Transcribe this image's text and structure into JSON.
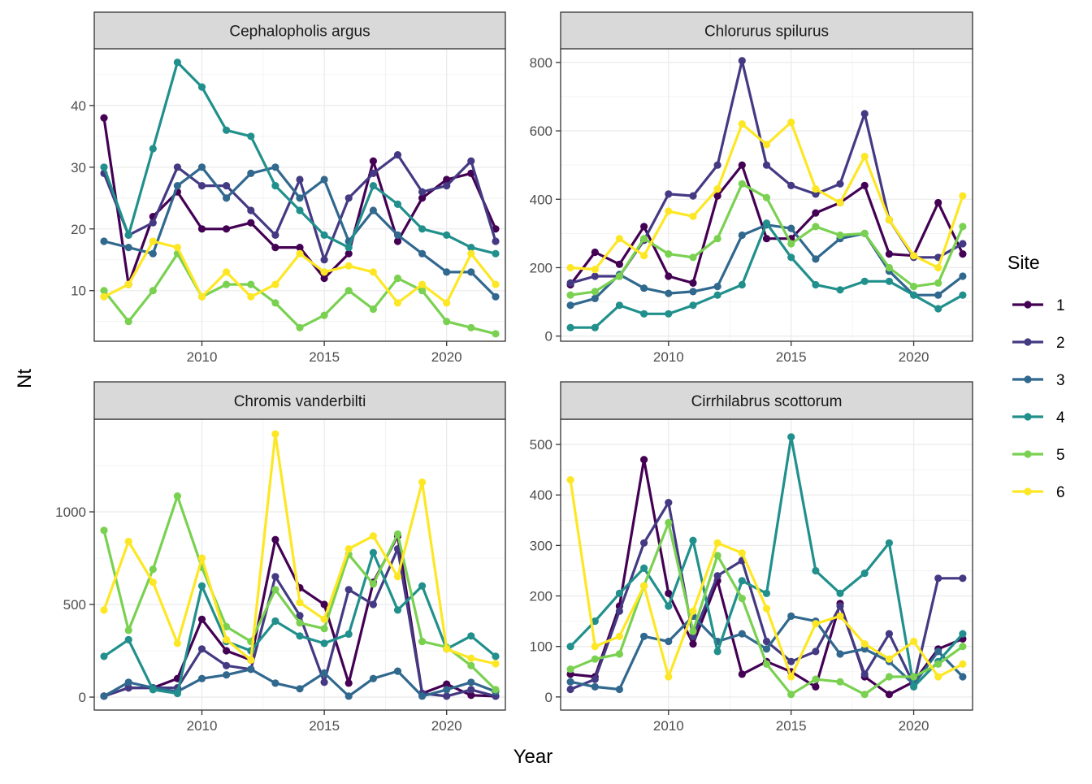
{
  "chart_data": {
    "type": "line",
    "xlabel": "Year",
    "ylabel": "Nt",
    "legend": {
      "title": "Site",
      "position": "right",
      "entries": [
        "1",
        "2",
        "3",
        "4",
        "5",
        "6"
      ]
    },
    "colors": [
      "#440154",
      "#443A83",
      "#31688E",
      "#21908C",
      "#7AD151",
      "#FDE725"
    ],
    "grid": true,
    "x": [
      2006,
      2007,
      2008,
      2009,
      2010,
      2011,
      2012,
      2013,
      2014,
      2015,
      2016,
      2017,
      2018,
      2019,
      2020,
      2021,
      2022
    ],
    "x_ticks": [
      2010,
      2015,
      2020
    ],
    "x_tick_labels": [
      "2010",
      "2015",
      "2020"
    ],
    "x_range": [
      2005.6,
      2022.4
    ],
    "panels": [
      {
        "title": "Cephalopholis argus",
        "ylim": [
          1.8,
          49.2
        ],
        "y_ticks": [
          10,
          20,
          30,
          40
        ],
        "y_tick_labels": [
          "10",
          "20",
          "30",
          "40"
        ],
        "series": [
          {
            "name": "1",
            "values": [
              38,
              11,
              22,
              26,
              20,
              20,
              21,
              17,
              17,
              12,
              16,
              31,
              18,
              25,
              28,
              29,
              20
            ]
          },
          {
            "name": "2",
            "values": [
              29,
              19,
              21,
              30,
              27,
              27,
              23,
              19,
              28,
              15,
              25,
              29,
              32,
              26,
              27,
              31,
              18
            ]
          },
          {
            "name": "3",
            "values": [
              18,
              17,
              16,
              27,
              30,
              25,
              29,
              30,
              25,
              28,
              18,
              23,
              19,
              16,
              13,
              13,
              9
            ]
          },
          {
            "name": "4",
            "values": [
              30,
              19,
              33,
              47,
              43,
              36,
              35,
              27,
              23,
              19,
              17,
              27,
              24,
              20,
              19,
              17,
              16
            ]
          },
          {
            "name": "5",
            "values": [
              10,
              5,
              10,
              16,
              9,
              11,
              11,
              8,
              4,
              6,
              10,
              7,
              12,
              10,
              5,
              4,
              3
            ]
          },
          {
            "name": "6",
            "values": [
              9,
              11,
              18,
              17,
              9,
              13,
              9,
              11,
              16,
              13,
              14,
              13,
              8,
              11,
              8,
              16,
              11
            ]
          }
        ]
      },
      {
        "title": "Chlorurus spilurus",
        "ylim": [
          -15,
          840
        ],
        "y_ticks": [
          0,
          200,
          400,
          600,
          800
        ],
        "y_tick_labels": [
          "0",
          "200",
          "400",
          "600",
          "800"
        ],
        "series": [
          {
            "name": "1",
            "values": [
              150,
              245,
              210,
              320,
              175,
              155,
              410,
              500,
              285,
              285,
              360,
              390,
              440,
              240,
              235,
              390,
              240
            ]
          },
          {
            "name": "2",
            "values": [
              155,
              175,
              175,
              280,
              415,
              410,
              500,
              805,
              500,
              440,
              415,
              445,
              650,
              340,
              230,
              230,
              270
            ]
          },
          {
            "name": "3",
            "values": [
              90,
              110,
              180,
              140,
              125,
              130,
              145,
              295,
              325,
              315,
              225,
              285,
              300,
              190,
              120,
              120,
              175
            ]
          },
          {
            "name": "4",
            "values": [
              25,
              25,
              90,
              65,
              65,
              90,
              120,
              150,
              330,
              230,
              150,
              135,
              160,
              160,
              120,
              80,
              120
            ]
          },
          {
            "name": "5",
            "values": [
              120,
              130,
              175,
              285,
              240,
              230,
              285,
              445,
              405,
              270,
              320,
              295,
              300,
              200,
              145,
              155,
              320
            ]
          },
          {
            "name": "6",
            "values": [
              200,
              195,
              285,
              235,
              365,
              350,
              430,
              620,
              560,
              625,
              430,
              390,
              525,
              340,
              235,
              200,
              410
            ]
          }
        ]
      },
      {
        "title": "Chromis vanderbilti",
        "ylim": [
          -70,
          1500
        ],
        "y_ticks": [
          0,
          500,
          1000
        ],
        "y_tick_labels": [
          "0",
          "500",
          "1000"
        ],
        "series": [
          {
            "name": "1",
            "values": [
              5,
              50,
              50,
              100,
              420,
              250,
              200,
              850,
              590,
              500,
              75,
              620,
              870,
              20,
              70,
              10,
              5
            ]
          },
          {
            "name": "2",
            "values": [
              5,
              50,
              50,
              50,
              260,
              170,
              150,
              650,
              440,
              80,
              580,
              500,
              800,
              20,
              5,
              40,
              5
            ]
          },
          {
            "name": "3",
            "values": [
              5,
              80,
              50,
              30,
              100,
              120,
              150,
              75,
              45,
              130,
              5,
              100,
              140,
              5,
              40,
              80,
              30
            ]
          },
          {
            "name": "4",
            "values": [
              220,
              310,
              40,
              20,
              600,
              300,
              250,
              410,
              330,
              290,
              340,
              780,
              470,
              600,
              260,
              330,
              220
            ]
          },
          {
            "name": "5",
            "values": [
              900,
              360,
              690,
              1085,
              700,
              380,
              300,
              580,
              400,
              370,
              770,
              610,
              880,
              300,
              270,
              170,
              40
            ]
          },
          {
            "name": "6",
            "values": [
              470,
              840,
              620,
              290,
              750,
              310,
              200,
              1420,
              510,
              420,
              800,
              870,
              650,
              1160,
              260,
              210,
              180
            ]
          }
        ]
      },
      {
        "title": "Cirrhilabrus scottorum",
        "ylim": [
          -26,
          550
        ],
        "y_ticks": [
          0,
          100,
          200,
          300,
          400,
          500
        ],
        "y_tick_labels": [
          "0",
          "100",
          "200",
          "300",
          "400",
          "500"
        ],
        "series": [
          {
            "name": "1",
            "values": [
              45,
              40,
              180,
              470,
              205,
              105,
              230,
              45,
              70,
              50,
              20,
              185,
              40,
              5,
              30,
              95,
              115
            ]
          },
          {
            "name": "2",
            "values": [
              15,
              35,
              170,
              305,
              385,
              120,
              240,
              270,
              110,
              70,
              90,
              180,
              45,
              125,
              25,
              235,
              235
            ]
          },
          {
            "name": "3",
            "values": [
              30,
              20,
              15,
              120,
              110,
              160,
              110,
              125,
              95,
              160,
              150,
              85,
              95,
              70,
              25,
              90,
              40
            ]
          },
          {
            "name": "4",
            "values": [
              100,
              150,
              205,
              255,
              180,
              310,
              90,
              230,
              205,
              515,
              250,
              205,
              245,
              305,
              20,
              70,
              125
            ]
          },
          {
            "name": "5",
            "values": [
              55,
              75,
              85,
              220,
              345,
              130,
              280,
              195,
              65,
              5,
              35,
              30,
              5,
              40,
              40,
              65,
              100
            ]
          },
          {
            "name": "6",
            "values": [
              430,
              100,
              120,
              220,
              40,
              170,
              305,
              285,
              175,
              40,
              145,
              160,
              105,
              75,
              110,
              40,
              65
            ]
          }
        ]
      }
    ]
  }
}
